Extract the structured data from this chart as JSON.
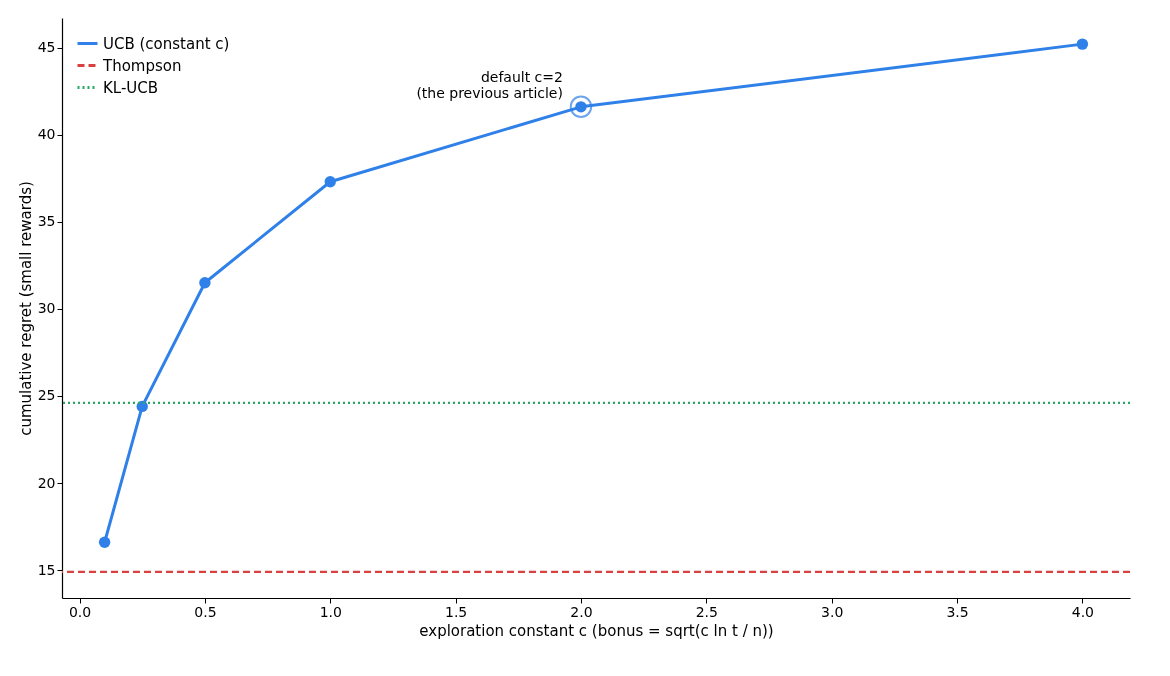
{
  "chart_data": {
    "type": "line",
    "xlabel": "exploration constant c  (bonus = sqrt(c ln t / n))",
    "ylabel": "cumulative regret (small rewards)",
    "x": [
      0.1,
      0.25,
      0.5,
      1.0,
      2.0,
      4.0
    ],
    "series": [
      {
        "name": "UCB (constant c)",
        "color": "#2f80e8",
        "values": [
          16.6,
          24.4,
          31.5,
          37.3,
          41.6,
          45.2
        ]
      }
    ],
    "ref_lines": [
      {
        "axis": "y",
        "value": 14.9,
        "label": "Thompson",
        "color": "#d94040",
        "line_style": "dashed"
      },
      {
        "axis": "y",
        "value": 24.6,
        "label": "KL-UCB",
        "color": "#2aa866",
        "line_style": "dotted"
      }
    ],
    "annotations": [
      {
        "text": "default c=2\n(the previous article)",
        "x": 2.0,
        "y": 41.6
      }
    ],
    "xlim": [
      -0.07,
      4.19
    ],
    "ylim": [
      13.4,
      46.7
    ],
    "xticks": [
      {
        "value": 0,
        "label": "0.0"
      },
      {
        "value": 0.5,
        "label": "0.5"
      },
      {
        "value": 1,
        "label": "1.0"
      },
      {
        "value": 1.5,
        "label": "1.5"
      },
      {
        "value": 2,
        "label": "2.0"
      },
      {
        "value": 2.5,
        "label": "2.5"
      },
      {
        "value": 3,
        "label": "3.0"
      },
      {
        "value": 3.5,
        "label": "3.5"
      },
      {
        "value": 4,
        "label": "4.0"
      }
    ],
    "yticks": [
      15,
      20,
      25,
      30,
      35,
      40,
      45
    ],
    "grid": false,
    "legend": "top left",
    "marker": "circle",
    "line_style": "solid"
  }
}
